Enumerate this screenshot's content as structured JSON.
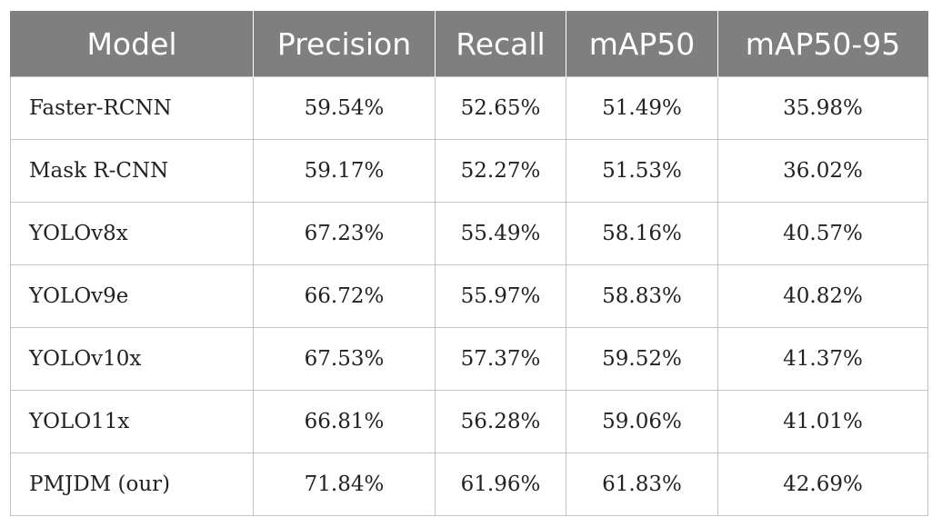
{
  "table": {
    "headers": [
      "Model",
      "Precision",
      "Recall",
      "mAP50",
      "mAP50-95"
    ],
    "rows": [
      [
        "Faster-RCNN",
        "59.54%",
        "52.65%",
        "51.49%",
        "35.98%"
      ],
      [
        "Mask R-CNN",
        "59.17%",
        "52.27%",
        "51.53%",
        "36.02%"
      ],
      [
        "YOLOv8x",
        "67.23%",
        "55.49%",
        "58.16%",
        "40.57%"
      ],
      [
        "YOLOv9e",
        "66.72%",
        "55.97%",
        "58.83%",
        "40.82%"
      ],
      [
        "YOLOv10x",
        "67.53%",
        "57.37%",
        "59.52%",
        "41.37%"
      ],
      [
        "YOLO11x",
        "66.81%",
        "56.28%",
        "59.06%",
        "41.01%"
      ],
      [
        "PMJDM (our)",
        "71.84%",
        "61.96%",
        "61.83%",
        "42.69%"
      ]
    ]
  },
  "colors": {
    "header_bg": "#7f7f7f",
    "header_text": "#ffffff",
    "grid_line": "#c4c4c4",
    "cell_text": "#222222"
  }
}
